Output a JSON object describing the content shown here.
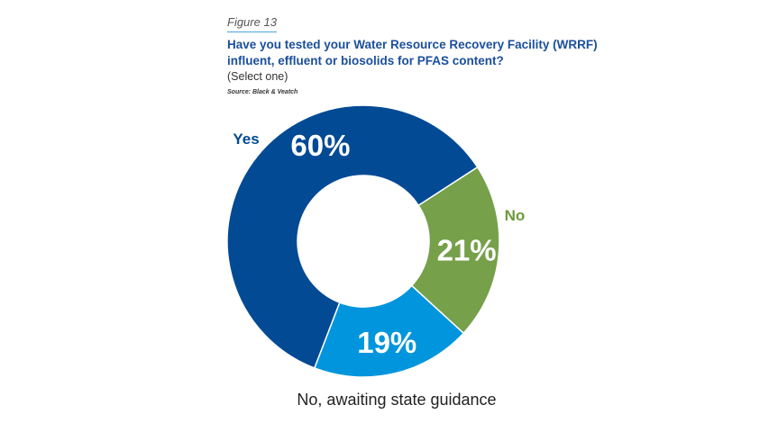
{
  "figure_label": "Figure 13",
  "title": "Have you tested your Water Resource Recovery Facility (WRRF) influent, effluent or biosolids for PFAS content?",
  "subtitle": "(Select one)",
  "source": "Source: Black & Veatch",
  "chart_data": {
    "type": "pie",
    "donut": true,
    "title": "Have you tested your Water Resource Recovery Facility (WRRF) influent, effluent or biosolids for PFAS content?",
    "subtitle": "(Select one)",
    "slices": [
      {
        "label": "Yes",
        "value": 60,
        "value_label": "60%",
        "color": "#034a95",
        "label_color": "#034a95"
      },
      {
        "label": "No",
        "value": 21,
        "value_label": "21%",
        "color": "#76a04a",
        "label_color": "#6b9a3e"
      },
      {
        "label": "No, awaiting state guidance",
        "value": 19,
        "value_label": "19%",
        "color": "#0095dc",
        "label_color": "#222222"
      }
    ]
  }
}
